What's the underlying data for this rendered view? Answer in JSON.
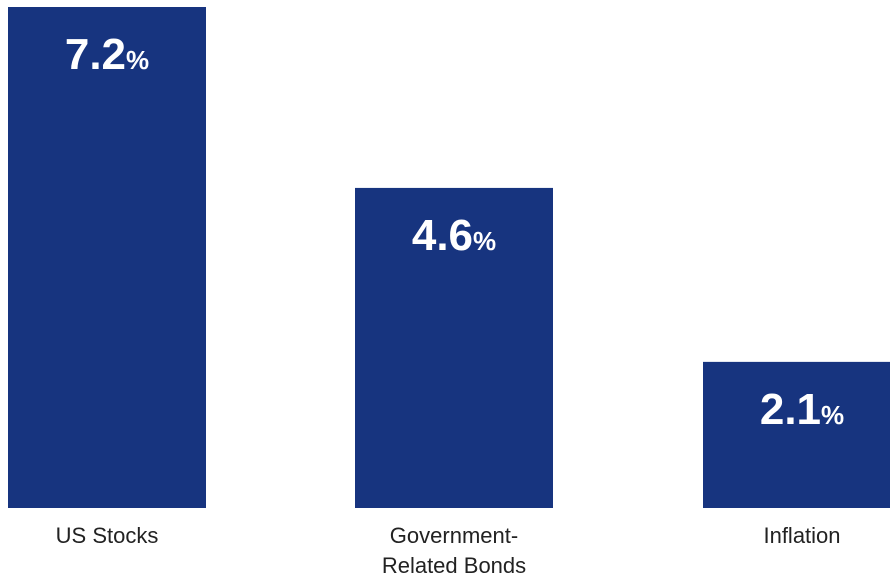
{
  "chart_data": {
    "type": "bar",
    "categories": [
      "US Stocks",
      "Government-Related Bonds",
      "Inflation"
    ],
    "category_lines": [
      [
        "US Stocks"
      ],
      [
        "Government-",
        "Related Bonds"
      ],
      [
        "Inflation"
      ]
    ],
    "values": [
      7.2,
      4.6,
      2.1
    ],
    "value_labels": [
      "7.2",
      "4.6",
      "2.1"
    ],
    "value_unit": "%",
    "ylim": [
      0,
      7.2
    ],
    "grid": false,
    "legend": "none",
    "bar_color": "#17347f",
    "label_color": "#ffffff",
    "title": "",
    "xlabel": "",
    "ylabel": ""
  }
}
